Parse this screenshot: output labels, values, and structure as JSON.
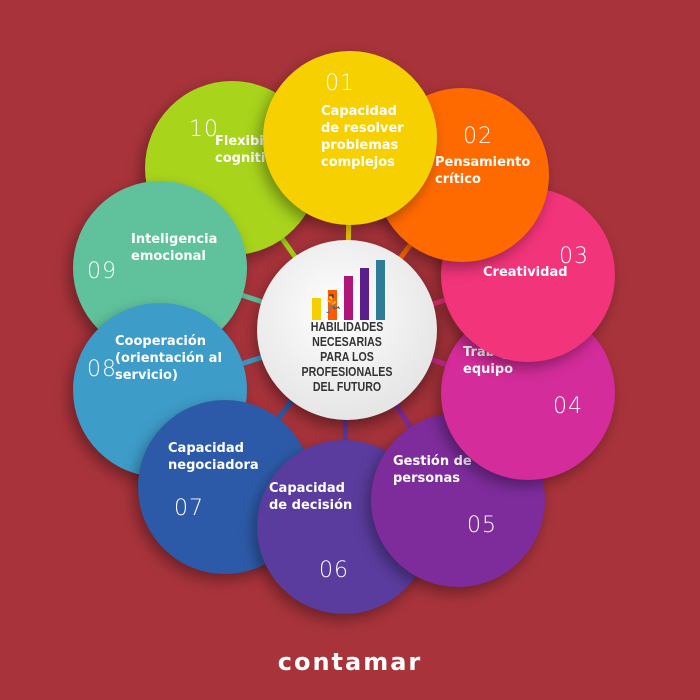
{
  "background_color": "#a8333b",
  "center": {
    "title": "HABILIDADES NECESARIAS\nPARA LOS PROFESIONALES\nDEL FUTURO",
    "icon": "rising-bar-chart-with-businessman-icon",
    "bar_colors": [
      "#f5d000",
      "#ff5a00",
      "#b0167a",
      "#5a1f8a",
      "#2e7d96"
    ]
  },
  "skills": [
    {
      "number": "01",
      "label": "Capacidad\nde resolver\nproblemas\ncomplejos",
      "color": "#f6d000"
    },
    {
      "number": "02",
      "label": "Pensamiento\ncrítico",
      "color": "#ff6a00"
    },
    {
      "number": "03",
      "label": "Creatividad",
      "color": "#f2347a"
    },
    {
      "number": "04",
      "label": "Trabajo en\nequipo",
      "color": "#d42c9a"
    },
    {
      "number": "05",
      "label": "Gestión de\npersonas",
      "color": "#7e2c9c"
    },
    {
      "number": "06",
      "label": "Capacidad\nde decisión",
      "color": "#5a3c9e"
    },
    {
      "number": "07",
      "label": "Capacidad\nnegociadora",
      "color": "#2d5aa8"
    },
    {
      "number": "08",
      "label": "Cooperación\n(orientación al\nservicio)",
      "color": "#3e9cc8"
    },
    {
      "number": "09",
      "label": "Inteligencia\nemocional",
      "color": "#60c29c"
    },
    {
      "number": "10",
      "label": "Flexibilidad\ncognitiva",
      "color": "#a8d41c"
    }
  ],
  "brand": "contamar"
}
